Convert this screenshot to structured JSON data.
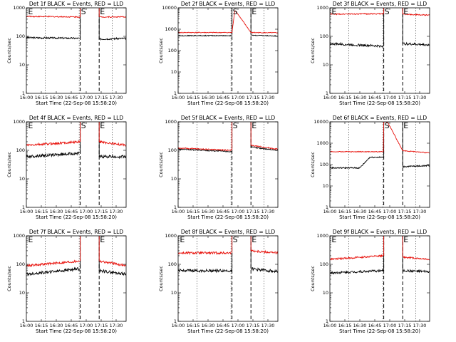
{
  "figure": {
    "colors": {
      "events": "#000000",
      "lld": "#e8120c",
      "axes": "#000000",
      "background": "#ffffff"
    }
  },
  "chart_data": [
    {
      "type": "line",
      "title": "Det 1f BLACK = Events, RED = LLD",
      "xlabel": "Start Time (22-Sep-08 15:58:20)",
      "ylabel": "Counts/sec",
      "xlim": [
        0,
        100
      ],
      "ylim_log": [
        1,
        1000
      ],
      "x_ticks": [
        0,
        15,
        30,
        45,
        60,
        75,
        90
      ],
      "x_tick_labels": [
        "16:00",
        "16:15",
        "16:30",
        "16:45",
        "17:00",
        "17:15",
        "17:30"
      ],
      "y_ticks": [
        1,
        10,
        100,
        1000
      ],
      "y_tick_labels": [
        "1",
        "10",
        "100",
        "1000"
      ],
      "dotted_lines": [
        19,
        53,
        86
      ],
      "dashed_lines": [
        54,
        73
      ],
      "markers": [
        {
          "label": "E",
          "x": 1
        },
        {
          "label": "S",
          "x": 54
        },
        {
          "label": "E",
          "x": 73
        }
      ],
      "series": [
        {
          "name": "Events",
          "color": "#000000",
          "profile": "flat",
          "start": 90,
          "end": 85,
          "after": 80,
          "after_end": 85,
          "noise": 0.03
        },
        {
          "name": "LLD",
          "color": "#e8120c",
          "profile": "flat",
          "start": 500,
          "end": 480,
          "after": 480,
          "after_end": 480,
          "noise": 0.02
        }
      ]
    },
    {
      "type": "line",
      "title": "Det 2f BLACK = Events, RED = LLD",
      "xlabel": "Start Time (22-Sep-08 15:58:20)",
      "ylabel": "Counts/sec",
      "xlim": [
        0,
        100
      ],
      "ylim_log": [
        1,
        10000
      ],
      "x_ticks": [
        0,
        15,
        30,
        45,
        60,
        75,
        90
      ],
      "x_tick_labels": [
        "16:00",
        "16:15",
        "16:30",
        "16:45",
        "17:00",
        "17:15",
        "17:30"
      ],
      "y_ticks": [
        1,
        10,
        100,
        1000,
        10000
      ],
      "y_tick_labels": [
        "1",
        "10",
        "100",
        "1000",
        "10000"
      ],
      "dotted_lines": [
        19,
        53,
        86
      ],
      "dashed_lines": [
        54,
        73
      ],
      "markers": [
        {
          "label": "S",
          "x": 54
        },
        {
          "label": "E",
          "x": 73
        }
      ],
      "series": [
        {
          "name": "Events",
          "color": "#000000",
          "profile": "flat",
          "start": 500,
          "end": 500,
          "after": 520,
          "after_end": 480,
          "noise": 0.02
        },
        {
          "name": "LLD",
          "color": "#e8120c",
          "profile": "hump",
          "start": 700,
          "end": 700,
          "peak": 8000,
          "after": 700,
          "after_end": 680,
          "noise": 0.02
        }
      ]
    },
    {
      "type": "line",
      "title": "Det 3f BLACK = Events, RED = LLD",
      "xlabel": "Start Time (22-Sep-08 15:58:20)",
      "ylabel": "Counts/sec",
      "xlim": [
        0,
        100
      ],
      "ylim_log": [
        1,
        1000
      ],
      "x_ticks": [
        0,
        15,
        30,
        45,
        60,
        75,
        90
      ],
      "x_tick_labels": [
        "16:00",
        "16:15",
        "16:30",
        "16:45",
        "17:00",
        "17:15",
        "17:30"
      ],
      "y_ticks": [
        1,
        10,
        100,
        1000
      ],
      "y_tick_labels": [
        "1",
        "10",
        "100",
        "1000"
      ],
      "dotted_lines": [
        19,
        53,
        86
      ],
      "dashed_lines": [
        54,
        73
      ],
      "markers": [
        {
          "label": "E",
          "x": 1
        },
        {
          "label": "S",
          "x": 54
        },
        {
          "label": "E",
          "x": 73
        }
      ],
      "series": [
        {
          "name": "Events",
          "color": "#000000",
          "profile": "flat",
          "start": 55,
          "end": 45,
          "after": 55,
          "after_end": 50,
          "noise": 0.04
        },
        {
          "name": "LLD",
          "color": "#e8120c",
          "profile": "flat",
          "start": 600,
          "end": 620,
          "after": 600,
          "after_end": 550,
          "noise": 0.02
        }
      ]
    },
    {
      "type": "line",
      "title": "Det 4f BLACK = Events, RED = LLD",
      "xlabel": "Start Time (22-Sep-08 15:58:20)",
      "ylabel": "Counts/sec",
      "xlim": [
        0,
        100
      ],
      "ylim_log": [
        1,
        1000
      ],
      "x_ticks": [
        0,
        15,
        30,
        45,
        60,
        75,
        90
      ],
      "x_tick_labels": [
        "16:00",
        "16:15",
        "16:30",
        "16:45",
        "17:00",
        "17:15",
        "17:30"
      ],
      "y_ticks": [
        1,
        10,
        100,
        1000
      ],
      "y_tick_labels": [
        "1",
        "10",
        "100",
        "1000"
      ],
      "dotted_lines": [
        19,
        53,
        86
      ],
      "dashed_lines": [
        54,
        73
      ],
      "markers": [
        {
          "label": "E",
          "x": 1
        },
        {
          "label": "S",
          "x": 54
        },
        {
          "label": "E",
          "x": 73
        }
      ],
      "series": [
        {
          "name": "Events",
          "color": "#000000",
          "profile": "flat",
          "start": 60,
          "end": 80,
          "after": 60,
          "after_end": 60,
          "noise": 0.05
        },
        {
          "name": "LLD",
          "color": "#e8120c",
          "profile": "flat",
          "start": 150,
          "end": 200,
          "after": 200,
          "after_end": 150,
          "noise": 0.04
        }
      ]
    },
    {
      "type": "line",
      "title": "Det 5f BLACK = Events, RED = LLD",
      "xlabel": "Start Time (22-Sep-08 15:58:20)",
      "ylabel": "Counts/sec",
      "xlim": [
        0,
        100
      ],
      "ylim_log": [
        1,
        1000
      ],
      "x_ticks": [
        0,
        15,
        30,
        45,
        60,
        75,
        90
      ],
      "x_tick_labels": [
        "16:00",
        "16:15",
        "16:30",
        "16:45",
        "17:00",
        "17:15",
        "17:30"
      ],
      "y_ticks": [
        1,
        10,
        100,
        1000
      ],
      "y_tick_labels": [
        "1",
        "10",
        "100",
        "1000"
      ],
      "dotted_lines": [
        19,
        53,
        86
      ],
      "dashed_lines": [
        54,
        73
      ],
      "markers": [
        {
          "label": "S",
          "x": 54
        },
        {
          "label": "E",
          "x": 73
        }
      ],
      "series": [
        {
          "name": "Events",
          "color": "#000000",
          "profile": "flat",
          "start": 110,
          "end": 90,
          "after": 130,
          "after_end": 100,
          "noise": 0.02
        },
        {
          "name": "LLD",
          "color": "#e8120c",
          "profile": "flat",
          "start": 120,
          "end": 100,
          "after": 150,
          "after_end": 110,
          "noise": 0.02
        }
      ]
    },
    {
      "type": "line",
      "title": "Det 6f BLACK = Events, RED = LLD",
      "xlabel": "Start Time (22-Sep-08 15:58:20)",
      "ylabel": "Counts/sec",
      "xlim": [
        0,
        100
      ],
      "ylim_log": [
        1,
        10000
      ],
      "x_ticks": [
        0,
        15,
        30,
        45,
        60,
        75,
        90
      ],
      "x_tick_labels": [
        "16:00",
        "16:15",
        "16:30",
        "16:45",
        "17:00",
        "17:15",
        "17:30"
      ],
      "y_ticks": [
        1,
        10,
        100,
        1000,
        10000
      ],
      "y_tick_labels": [
        "1",
        "10",
        "100",
        "1000",
        "10000"
      ],
      "dotted_lines": [
        19,
        53,
        86
      ],
      "dashed_lines": [
        54,
        73
      ],
      "markers": [
        {
          "label": "S",
          "x": 54
        },
        {
          "label": "E",
          "x": 73
        }
      ],
      "series": [
        {
          "name": "Events",
          "color": "#000000",
          "profile": "bump",
          "start": 70,
          "end": 220,
          "bump_at": 30,
          "after": 80,
          "after_end": 90,
          "noise": 0.03
        },
        {
          "name": "LLD",
          "color": "#e8120c",
          "profile": "decay",
          "start": 400,
          "end": 400,
          "peak": 10000,
          "after": 450,
          "after_end": 350,
          "noise": 0.02
        }
      ]
    },
    {
      "type": "line",
      "title": "Det 7f BLACK = Events, RED = LLD",
      "xlabel": "Start Time (22-Sep-08 15:58:20)",
      "ylabel": "Counts/sec",
      "xlim": [
        0,
        100
      ],
      "ylim_log": [
        1,
        1000
      ],
      "x_ticks": [
        0,
        15,
        30,
        45,
        60,
        75,
        90
      ],
      "x_tick_labels": [
        "16:00",
        "16:15",
        "16:30",
        "16:45",
        "17:00",
        "17:15",
        "17:30"
      ],
      "y_ticks": [
        1,
        10,
        100,
        1000
      ],
      "y_tick_labels": [
        "1",
        "10",
        "100",
        "1000"
      ],
      "dotted_lines": [
        19,
        53,
        86
      ],
      "dashed_lines": [
        54,
        73
      ],
      "markers": [
        {
          "label": "E",
          "x": 1
        },
        {
          "label": "E",
          "x": 73
        }
      ],
      "series": [
        {
          "name": "Events",
          "color": "#000000",
          "profile": "flat",
          "start": 45,
          "end": 70,
          "after": 60,
          "after_end": 45,
          "noise": 0.05
        },
        {
          "name": "LLD",
          "color": "#e8120c",
          "profile": "flat",
          "start": 90,
          "end": 130,
          "after": 130,
          "after_end": 90,
          "noise": 0.04
        }
      ]
    },
    {
      "type": "line",
      "title": "Det 8f BLACK = Events, RED = LLD",
      "xlabel": "Start Time (22-Sep-08 15:58:20)",
      "ylabel": "Counts/sec",
      "xlim": [
        0,
        100
      ],
      "ylim_log": [
        1,
        1000
      ],
      "x_ticks": [
        0,
        15,
        30,
        45,
        60,
        75,
        90
      ],
      "x_tick_labels": [
        "16:00",
        "16:15",
        "16:30",
        "16:45",
        "17:00",
        "17:15",
        "17:30"
      ],
      "y_ticks": [
        1,
        10,
        100,
        1000
      ],
      "y_tick_labels": [
        "1",
        "10",
        "100",
        "1000"
      ],
      "dotted_lines": [
        19,
        53,
        86
      ],
      "dashed_lines": [
        54,
        73
      ],
      "markers": [
        {
          "label": "E",
          "x": 1
        },
        {
          "label": "S",
          "x": 54
        },
        {
          "label": "E",
          "x": 73
        }
      ],
      "series": [
        {
          "name": "Events",
          "color": "#000000",
          "profile": "flat",
          "start": 60,
          "end": 60,
          "after": 70,
          "after_end": 55,
          "noise": 0.05
        },
        {
          "name": "LLD",
          "color": "#e8120c",
          "profile": "flat",
          "start": 250,
          "end": 250,
          "after": 300,
          "after_end": 250,
          "noise": 0.04
        }
      ]
    },
    {
      "type": "line",
      "title": "Det 9f BLACK = Events, RED = LLD",
      "xlabel": "Start Time (22-Sep-08 15:58:20)",
      "ylabel": "Counts/sec",
      "xlim": [
        0,
        100
      ],
      "ylim_log": [
        1,
        1000
      ],
      "x_ticks": [
        0,
        15,
        30,
        45,
        60,
        75,
        90
      ],
      "x_tick_labels": [
        "16:00",
        "16:15",
        "16:30",
        "16:45",
        "17:00",
        "17:15",
        "17:30"
      ],
      "y_ticks": [
        1,
        10,
        100,
        1000
      ],
      "y_tick_labels": [
        "1",
        "10",
        "100",
        "1000"
      ],
      "dotted_lines": [
        19,
        53,
        86
      ],
      "dashed_lines": [
        54,
        73
      ],
      "markers": [
        {
          "label": "E",
          "x": 1
        },
        {
          "label": "E",
          "x": 73
        }
      ],
      "series": [
        {
          "name": "Events",
          "color": "#000000",
          "profile": "flat",
          "start": 50,
          "end": 60,
          "after": 60,
          "after_end": 55,
          "noise": 0.04
        },
        {
          "name": "LLD",
          "color": "#e8120c",
          "profile": "flat",
          "start": 150,
          "end": 200,
          "after": 180,
          "after_end": 150,
          "noise": 0.03
        }
      ]
    }
  ]
}
